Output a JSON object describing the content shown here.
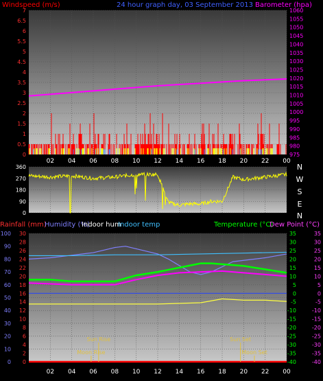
{
  "header": {
    "left_title": "Windspeed (m/s)",
    "center_title": "24 hour graph day, 03 September 2013",
    "right_title": "Barometer (hpa)"
  },
  "bottom_header": {
    "rainfall": "Rainfall (mm)",
    "humidity": "Humidity (%)",
    "indoor_hum": "Indoor hum",
    "indoor_temp": "Indoor temp",
    "temperature": "Temperature (°C)",
    "dew_point": "Dew Point (°C)"
  },
  "x_ticks": [
    "02",
    "04",
    "06",
    "08",
    "10",
    "12",
    "14",
    "16",
    "18",
    "20",
    "22",
    "00"
  ],
  "direction_letters": [
    "N",
    "W",
    "S",
    "E",
    "N"
  ],
  "sun_moon": {
    "sun_rise": "Sun Rise",
    "sun_set": "Sun Set",
    "moon_rise": "Moon Rise",
    "moon_set": "Moon Set"
  },
  "colors": {
    "windspeed": "#ff0000",
    "wind_avg": "#4080ff",
    "wind_gust": "#ffff00",
    "barometer": "#ff00ff",
    "humidity": "#8080ff",
    "indoor_temp": "#40c0ff",
    "temperature": "#00ff00",
    "dew_point": "#ff00ff",
    "indoor_hum": "#ffff40",
    "rainfall": "#ff0000"
  },
  "chart_data": [
    {
      "type": "line",
      "name": "wind-barometer",
      "x_unit": "hour",
      "xlim": [
        0,
        24
      ],
      "wind_axis": {
        "ticks": [
          "0",
          "0.5",
          "1",
          "1.5",
          "2",
          "2.5",
          "3",
          "3.5",
          "4",
          "4.5",
          "5",
          "5.5",
          "6",
          "6.5",
          "7"
        ],
        "ylim": [
          0,
          7
        ]
      },
      "baro_axis": {
        "ticks": [
          "975",
          "980",
          "985",
          "990",
          "995",
          "1000",
          "1005",
          "1010",
          "1015",
          "1020",
          "1025",
          "1030",
          "1035",
          "1040",
          "1045",
          "1050",
          "1055",
          "1060"
        ],
        "ylim": [
          975,
          1060
        ]
      },
      "barometer": {
        "x": [
          0,
          4,
          8,
          12,
          16,
          20,
          24
        ],
        "y": [
          1009.5,
          1011.5,
          1013.5,
          1015.5,
          1017,
          1018.5,
          1019.5
        ]
      },
      "wind_note": "gust bars mostly 0–1.5 m/s with peaks to 2 m/s"
    },
    {
      "type": "line",
      "name": "wind-direction",
      "x_unit": "hour",
      "xlim": [
        0,
        24
      ],
      "yaxis": {
        "ticks": [
          "0",
          "90",
          "180",
          "270",
          "360"
        ],
        "ylim": [
          0,
          360
        ]
      },
      "direction": {
        "x": [
          0,
          2,
          4,
          6,
          8,
          10,
          12,
          13,
          14,
          15,
          16,
          17,
          18,
          19,
          20,
          22,
          24
        ],
        "y": [
          290,
          280,
          290,
          270,
          280,
          300,
          300,
          80,
          60,
          70,
          70,
          90,
          90,
          280,
          260,
          280,
          300
        ]
      }
    },
    {
      "type": "line",
      "name": "temperature-humidity",
      "x_unit": "hour",
      "xlim": [
        0,
        24
      ],
      "rain_axis": {
        "ticks": [
          "0",
          "2",
          "4",
          "6",
          "8",
          "10",
          "12",
          "14",
          "16",
          "18",
          "20",
          "22",
          "24",
          "26",
          "28",
          "30"
        ],
        "ylim": [
          0,
          30
        ]
      },
      "hum_axis": {
        "ticks": [
          "0",
          "10",
          "20",
          "30",
          "40",
          "50",
          "60",
          "70",
          "80",
          "90",
          "100"
        ],
        "ylim": [
          0,
          100
        ]
      },
      "temp_axis": {
        "ticks": [
          "-40",
          "-35",
          "-30",
          "-25",
          "-20",
          "-15",
          "-10",
          "-5",
          "0",
          "5",
          "10",
          "15",
          "20",
          "25",
          "30",
          "35"
        ],
        "ylim": [
          -40,
          35
        ]
      },
      "series": [
        {
          "name": "Humidity (%)",
          "axis": "hum",
          "x": [
            0,
            2,
            4,
            6,
            8,
            9,
            10,
            11,
            12,
            13,
            14,
            15,
            16,
            17,
            18,
            19,
            20,
            22,
            24
          ],
          "y": [
            80,
            81,
            83,
            85,
            89,
            90,
            88,
            86,
            84,
            80,
            75,
            70,
            68,
            70,
            74,
            78,
            79,
            81,
            84
          ]
        },
        {
          "name": "Indoor temp",
          "axis": "temp",
          "x": [
            0,
            4,
            8,
            12,
            16,
            20,
            24
          ],
          "y": [
            22,
            22,
            22.5,
            22.5,
            23,
            23.5,
            24
          ]
        },
        {
          "name": "Temperature (°C)",
          "axis": "temp",
          "x": [
            0,
            2,
            4,
            6,
            8,
            10,
            12,
            14,
            16,
            17,
            18,
            20,
            22,
            24
          ],
          "y": [
            8,
            8,
            7,
            7,
            7,
            10.5,
            12.5,
            15,
            17.5,
            17.5,
            17,
            16,
            14,
            12
          ]
        },
        {
          "name": "Dew Point (°C)",
          "axis": "temp",
          "x": [
            0,
            2,
            4,
            6,
            8,
            10,
            12,
            14,
            16,
            18,
            20,
            22,
            24
          ],
          "y": [
            6,
            5.5,
            5,
            5,
            5,
            8,
            10.5,
            12,
            12.5,
            13,
            12,
            11,
            10
          ]
        },
        {
          "name": "Indoor hum",
          "axis": "hum",
          "x": [
            0,
            4,
            8,
            12,
            16,
            18,
            20,
            22,
            24
          ],
          "y": [
            45,
            45,
            45,
            45,
            46,
            49,
            48,
            48,
            47
          ]
        },
        {
          "name": "Rainfall (mm)",
          "axis": "rain",
          "x": [
            0,
            24
          ],
          "y": [
            0,
            0
          ]
        }
      ],
      "sun_rise_hour": 6.5,
      "sun_set_hour": 19.7,
      "moon_rise_hour": 5.8,
      "moon_set_hour": 21.0
    }
  ]
}
